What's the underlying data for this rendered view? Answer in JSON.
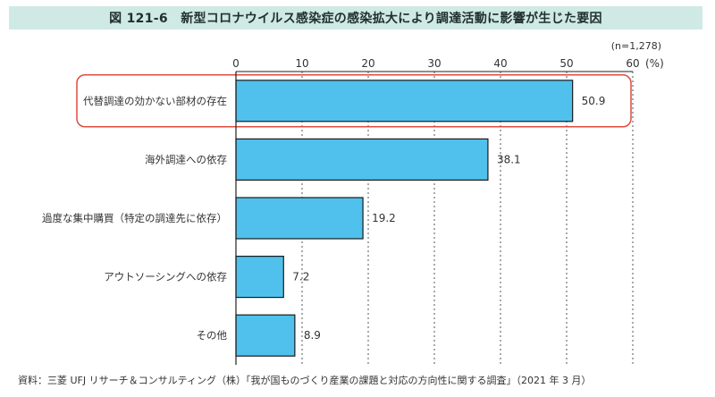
{
  "header": {
    "title": "図 121-6　新型コロナウイルス感染症の感染拡大により調達活動に影響が生じた要因"
  },
  "sample_note": "(n=1,278)",
  "unit_label": "(%)",
  "source": "資料：三菱 UFJ リサーチ＆コンサルティング（株）「我が国ものづくり産業の課題と対応の方向性に関する調査」（2021 年 3 月）",
  "colors": {
    "bar_fill": "#4fc1ec",
    "bar_stroke": "#1a1a1a",
    "highlight": "#e04b3f",
    "title_bg": "#cfe9e4"
  },
  "chart_data": {
    "type": "bar",
    "orientation": "horizontal",
    "categories": [
      "代替調達の効かない部材の存在",
      "海外調達への依存",
      "過度な集中購買（特定の調達先に依存）",
      "アウトソーシングへの依存",
      "その他"
    ],
    "values": [
      50.9,
      38.1,
      19.2,
      7.2,
      8.9
    ],
    "value_labels": [
      "50.9",
      "38.1",
      "19.2",
      "7.2",
      "8.9"
    ],
    "xlim": [
      0,
      60
    ],
    "ticks": [
      "0",
      "10",
      "20",
      "30",
      "40",
      "50",
      "60"
    ],
    "grid": true,
    "highlighted_category": 0
  }
}
